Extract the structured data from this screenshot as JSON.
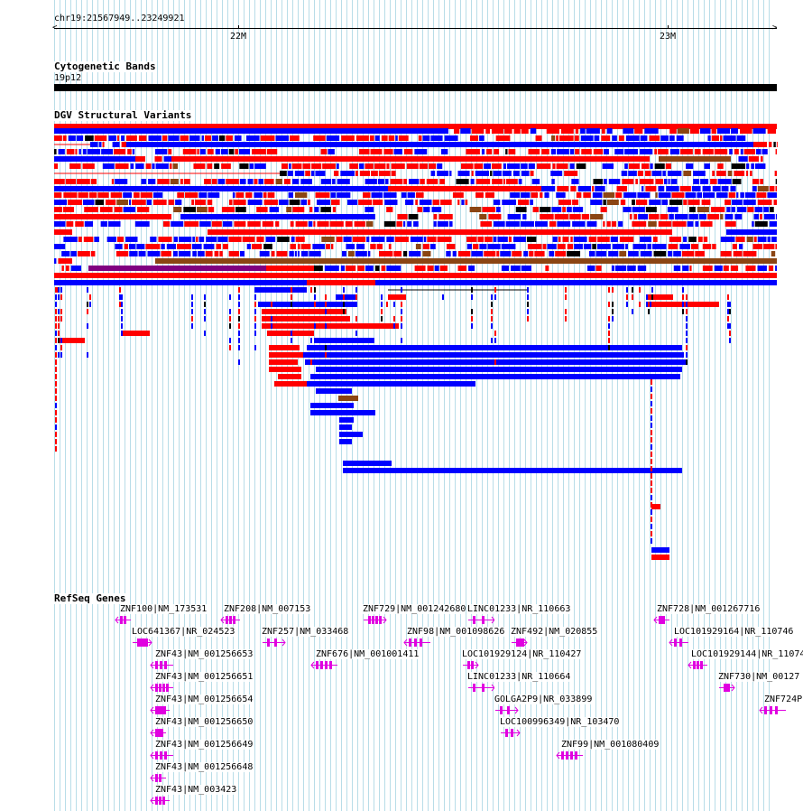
{
  "ruler": {
    "location": "chr19:21567949..23249921",
    "ticks": [
      {
        "label": "22M"
      },
      {
        "label": "23M"
      }
    ]
  },
  "tracks": {
    "cytoband": {
      "title": "Cytogenetic Bands",
      "band": "19p12"
    },
    "dgv": {
      "title": "DGV Structural Variants"
    },
    "refseq": {
      "title": "RefSeq Genes"
    }
  },
  "colors": {
    "gain": "#0000ff",
    "loss": "#ff0000",
    "gain_loss": "#8b4513",
    "inversion": "#800080",
    "gene": "#e000e0",
    "grid": "#b8dde8"
  },
  "genes": [
    {
      "label": "ZNF100|NM_173531",
      "strand": "-"
    },
    {
      "label": "ZNF208|NM_007153",
      "strand": "-"
    },
    {
      "label": "ZNF729|NM_001242680",
      "strand": "+"
    },
    {
      "label": "LINC01233|NR_110663",
      "strand": "+"
    },
    {
      "label": "ZNF728|NM_001267716",
      "strand": "-"
    },
    {
      "label": "LOC641367|NR_024523",
      "strand": "+"
    },
    {
      "label": "ZNF257|NM_033468",
      "strand": "+"
    },
    {
      "label": "ZNF98|NM_001098626",
      "strand": "-"
    },
    {
      "label": "ZNF492|NM_020855",
      "strand": "+"
    },
    {
      "label": "LOC101929164|NR_110746",
      "strand": "-"
    },
    {
      "label": "ZNF43|NM_001256653",
      "strand": "-"
    },
    {
      "label": "ZNF676|NM_001001411",
      "strand": "-"
    },
    {
      "label": "LOC101929124|NR_110427",
      "strand": "+"
    },
    {
      "label": "LOC101929144|NR_11074",
      "strand": "-"
    },
    {
      "label": "ZNF43|NM_001256651",
      "strand": "-"
    },
    {
      "label": "LINC01233|NR_110664",
      "strand": "+"
    },
    {
      "label": "ZNF730|NM_00127",
      "strand": "+"
    },
    {
      "label": "ZNF43|NM_001256654",
      "strand": "-"
    },
    {
      "label": "GOLGA2P9|NR_033899",
      "strand": "+"
    },
    {
      "label": "ZNF724P",
      "strand": "-"
    },
    {
      "label": "ZNF43|NM_001256650",
      "strand": "-"
    },
    {
      "label": "LOC100996349|NR_103470",
      "strand": "+"
    },
    {
      "label": "ZNF43|NM_001256649",
      "strand": "-"
    },
    {
      "label": "ZNF99|NM_001080409",
      "strand": "-"
    },
    {
      "label": "ZNF43|NM_001256648",
      "strand": "-"
    },
    {
      "label": "ZNF43|NM_003423",
      "strand": "-"
    }
  ]
}
